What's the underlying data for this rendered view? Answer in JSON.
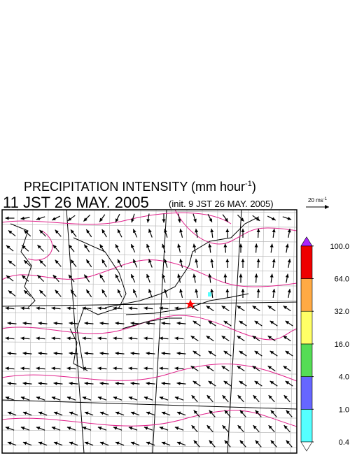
{
  "header": {
    "title": "PRECIPITATION INTENSITY (mm hour",
    "title_sup": "-1",
    "title_end": ")",
    "valid_time": "11 JST 26 MAY. 2005",
    "init_time": "(init. 9 JST 26 MAY. 2005)"
  },
  "wind_legend": {
    "label": "20 ms",
    "label_sup": "-1"
  },
  "colorbar": {
    "levels": [
      {
        "value": 0.4,
        "label": "0.4"
      },
      {
        "value": 1,
        "label": "1.0"
      },
      {
        "value": 4,
        "label": "4.0"
      },
      {
        "value": 16,
        "label": "16.0"
      },
      {
        "value": 32,
        "label": "32.0"
      },
      {
        "value": 64,
        "label": "64.0"
      },
      {
        "value": 100,
        "label": "100.0"
      }
    ],
    "colors": [
      "#55ffff",
      "#6666ff",
      "#55dd55",
      "#ffff66",
      "#ffaa44",
      "#ee0000"
    ],
    "under_color": "#ffffff",
    "over_color": "#aa22ff"
  }
}
